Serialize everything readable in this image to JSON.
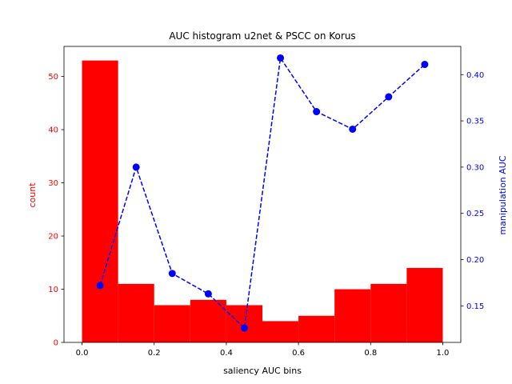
{
  "chart_data": {
    "type": "bar",
    "title": "AUC histogram u2net & PSCC on Korus",
    "xlabel": "saliency AUC bins",
    "ylabel": "count",
    "ylabel_right": "manipulation AUC",
    "xlim": [
      -0.05,
      1.05
    ],
    "ylim": [
      0,
      55.65
    ],
    "ylim_right": [
      0.1105,
      0.4305
    ],
    "x_ticks": [
      0.0,
      0.2,
      0.4,
      0.6,
      0.8,
      1.0
    ],
    "x_tick_labels": [
      "0.0",
      "0.2",
      "0.4",
      "0.6",
      "0.8",
      "1.0"
    ],
    "y_ticks": [
      0,
      10,
      20,
      30,
      40,
      50
    ],
    "y_tick_labels": [
      "0",
      "10",
      "20",
      "30",
      "40",
      "50"
    ],
    "y_right_ticks": [
      0.15,
      0.2,
      0.25,
      0.3,
      0.35,
      0.4
    ],
    "y_right_tick_labels": [
      "0.15",
      "0.20",
      "0.25",
      "0.30",
      "0.35",
      "0.40"
    ],
    "bin_edges": [
      0.0,
      0.1,
      0.2,
      0.3,
      0.4,
      0.5,
      0.6,
      0.7,
      0.8,
      0.9,
      1.0
    ],
    "series": [
      {
        "type": "bar",
        "axis": "left",
        "color": "#ff0000",
        "values": [
          53,
          11,
          7,
          8,
          7,
          4,
          5,
          10,
          11,
          14
        ]
      },
      {
        "type": "line",
        "axis": "right",
        "color": "#0000ff",
        "linestyle": "dashed",
        "marker": "circle",
        "x": [
          0.05,
          0.15,
          0.25,
          0.35,
          0.45,
          0.55,
          0.65,
          0.75,
          0.85,
          0.95
        ],
        "values": [
          0.172,
          0.3,
          0.185,
          0.163,
          0.126,
          0.418,
          0.36,
          0.341,
          0.376,
          0.411
        ]
      }
    ],
    "grid": false,
    "legend": false
  }
}
